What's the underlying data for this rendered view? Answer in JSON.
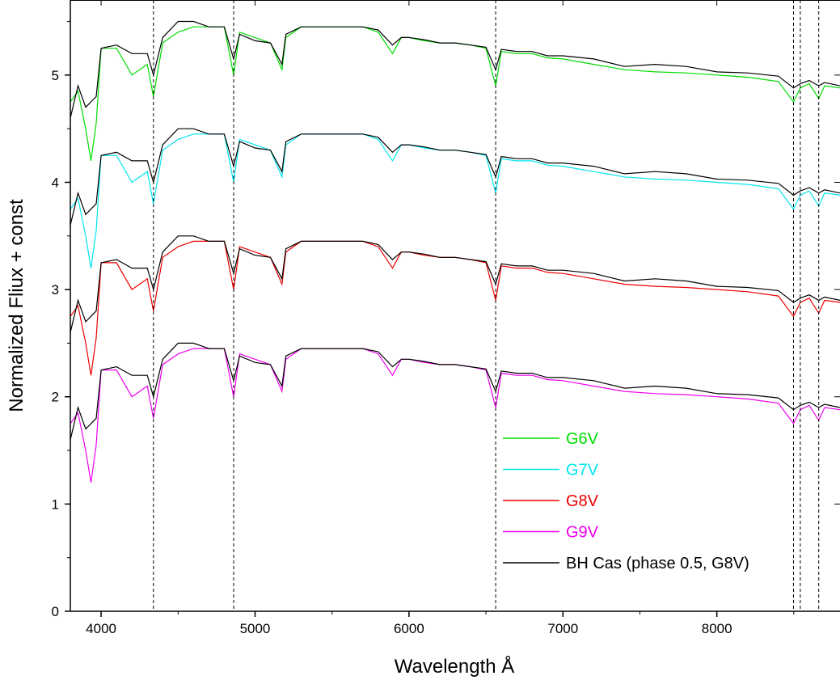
{
  "chart_data": {
    "type": "line",
    "title": "",
    "xlabel": "Wavelength Å",
    "ylabel": "Normalized Fliux + const",
    "xlim": [
      3800,
      8800
    ],
    "ylim": [
      0,
      5.7
    ],
    "x_ticks": [
      4000,
      5000,
      6000,
      7000,
      8000
    ],
    "y_ticks": [
      0,
      1,
      2,
      3,
      4,
      5
    ],
    "grid": false,
    "legend_position": "bottom-right",
    "reference_lines_x": [
      4340,
      4861,
      6563,
      8498,
      8542,
      8662
    ],
    "series": [
      {
        "name": "G6V",
        "color": "#00dd00",
        "offset": 3.0,
        "x": [
          3800,
          3850,
          3900,
          3934,
          3968,
          4000,
          4100,
          4200,
          4300,
          4340,
          4400,
          4500,
          4600,
          4700,
          4800,
          4861,
          4900,
          5000,
          5100,
          5175,
          5200,
          5300,
          5400,
          5500,
          5600,
          5700,
          5800,
          5893,
          5950,
          6000,
          6100,
          6200,
          6300,
          6400,
          6500,
          6563,
          6600,
          6700,
          6800,
          6900,
          7000,
          7200,
          7400,
          7600,
          7800,
          8000,
          8200,
          8400,
          8498,
          8542,
          8600,
          8662,
          8700,
          8800
        ],
        "y": [
          1.75,
          1.85,
          1.5,
          1.2,
          1.55,
          2.25,
          2.25,
          2.0,
          2.1,
          1.8,
          2.3,
          2.4,
          2.45,
          2.45,
          2.45,
          2.0,
          2.4,
          2.35,
          2.3,
          2.05,
          2.35,
          2.45,
          2.45,
          2.45,
          2.45,
          2.45,
          2.4,
          2.2,
          2.35,
          2.35,
          2.32,
          2.3,
          2.3,
          2.28,
          2.25,
          1.9,
          2.22,
          2.2,
          2.2,
          2.16,
          2.15,
          2.1,
          2.05,
          2.03,
          2.02,
          2.0,
          1.98,
          1.94,
          1.75,
          1.88,
          1.92,
          1.78,
          1.9,
          1.88
        ]
      },
      {
        "name": "G7V",
        "color": "#00e5ee",
        "offset": 2.0,
        "x": [
          3800,
          3850,
          3900,
          3934,
          3968,
          4000,
          4100,
          4200,
          4300,
          4340,
          4400,
          4500,
          4600,
          4700,
          4800,
          4861,
          4900,
          5000,
          5100,
          5175,
          5200,
          5300,
          5400,
          5500,
          5600,
          5700,
          5800,
          5893,
          5950,
          6000,
          6100,
          6200,
          6300,
          6400,
          6500,
          6563,
          6600,
          6700,
          6800,
          6900,
          7000,
          7200,
          7400,
          7600,
          7800,
          8000,
          8200,
          8400,
          8498,
          8542,
          8600,
          8662,
          8700,
          8800
        ],
        "y": [
          1.75,
          1.85,
          1.5,
          1.2,
          1.55,
          2.25,
          2.25,
          2.0,
          2.1,
          1.8,
          2.3,
          2.4,
          2.45,
          2.45,
          2.45,
          2.0,
          2.4,
          2.35,
          2.3,
          2.05,
          2.35,
          2.45,
          2.45,
          2.45,
          2.45,
          2.45,
          2.4,
          2.2,
          2.35,
          2.35,
          2.32,
          2.3,
          2.3,
          2.28,
          2.25,
          1.9,
          2.22,
          2.2,
          2.2,
          2.16,
          2.15,
          2.1,
          2.05,
          2.03,
          2.02,
          2.0,
          1.98,
          1.94,
          1.75,
          1.88,
          1.92,
          1.78,
          1.9,
          1.88
        ]
      },
      {
        "name": "G8V",
        "color": "#ee0000",
        "offset": 1.0,
        "x": [
          3800,
          3850,
          3900,
          3934,
          3968,
          4000,
          4100,
          4200,
          4300,
          4340,
          4400,
          4500,
          4600,
          4700,
          4800,
          4861,
          4900,
          5000,
          5100,
          5175,
          5200,
          5300,
          5400,
          5500,
          5600,
          5700,
          5800,
          5893,
          5950,
          6000,
          6100,
          6200,
          6300,
          6400,
          6500,
          6563,
          6600,
          6700,
          6800,
          6900,
          7000,
          7200,
          7400,
          7600,
          7800,
          8000,
          8200,
          8400,
          8498,
          8542,
          8600,
          8662,
          8700,
          8800
        ],
        "y": [
          1.75,
          1.85,
          1.5,
          1.2,
          1.55,
          2.25,
          2.25,
          2.0,
          2.1,
          1.8,
          2.3,
          2.4,
          2.45,
          2.45,
          2.45,
          2.0,
          2.4,
          2.35,
          2.3,
          2.05,
          2.35,
          2.45,
          2.45,
          2.45,
          2.45,
          2.45,
          2.4,
          2.2,
          2.35,
          2.35,
          2.32,
          2.3,
          2.3,
          2.28,
          2.25,
          1.9,
          2.22,
          2.2,
          2.2,
          2.16,
          2.15,
          2.1,
          2.05,
          2.03,
          2.02,
          2.0,
          1.98,
          1.94,
          1.75,
          1.88,
          1.92,
          1.78,
          1.9,
          1.88
        ]
      },
      {
        "name": "G9V",
        "color": "#ee00ee",
        "offset": 0.0,
        "x": [
          3800,
          3850,
          3900,
          3934,
          3968,
          4000,
          4100,
          4200,
          4300,
          4340,
          4400,
          4500,
          4600,
          4700,
          4800,
          4861,
          4900,
          5000,
          5100,
          5175,
          5200,
          5300,
          5400,
          5500,
          5600,
          5700,
          5800,
          5893,
          5950,
          6000,
          6100,
          6200,
          6300,
          6400,
          6500,
          6563,
          6600,
          6700,
          6800,
          6900,
          7000,
          7200,
          7400,
          7600,
          7800,
          8000,
          8200,
          8400,
          8498,
          8542,
          8600,
          8662,
          8700,
          8800
        ],
        "y": [
          1.75,
          1.85,
          1.5,
          1.2,
          1.55,
          2.25,
          2.25,
          2.0,
          2.1,
          1.8,
          2.3,
          2.4,
          2.45,
          2.45,
          2.45,
          2.0,
          2.4,
          2.35,
          2.3,
          2.05,
          2.35,
          2.45,
          2.45,
          2.45,
          2.45,
          2.45,
          2.4,
          2.2,
          2.35,
          2.35,
          2.32,
          2.3,
          2.3,
          2.28,
          2.25,
          1.9,
          2.22,
          2.2,
          2.2,
          2.16,
          2.15,
          2.1,
          2.05,
          2.03,
          2.02,
          2.0,
          1.98,
          1.94,
          1.75,
          1.88,
          1.92,
          1.78,
          1.9,
          1.88
        ]
      },
      {
        "name": "BH Cas (phase 0.5, G8V)",
        "color": "#000000",
        "offsets": [
          3.0,
          2.0,
          1.0,
          0.0
        ],
        "x": [
          3800,
          3850,
          3900,
          3934,
          3968,
          4000,
          4100,
          4200,
          4300,
          4340,
          4400,
          4500,
          4600,
          4700,
          4800,
          4861,
          4900,
          5000,
          5100,
          5175,
          5200,
          5300,
          5400,
          5500,
          5600,
          5700,
          5800,
          5893,
          5950,
          6000,
          6100,
          6200,
          6300,
          6400,
          6500,
          6563,
          6600,
          6700,
          6800,
          6900,
          7000,
          7200,
          7400,
          7600,
          7800,
          8000,
          8200,
          8400,
          8498,
          8542,
          8600,
          8662,
          8700,
          8800
        ],
        "y": [
          1.6,
          1.9,
          1.7,
          1.75,
          1.8,
          2.25,
          2.28,
          2.2,
          2.2,
          2.0,
          2.35,
          2.5,
          2.5,
          2.45,
          2.45,
          2.15,
          2.38,
          2.32,
          2.3,
          2.1,
          2.38,
          2.45,
          2.45,
          2.45,
          2.45,
          2.45,
          2.42,
          2.28,
          2.35,
          2.35,
          2.33,
          2.3,
          2.3,
          2.28,
          2.26,
          2.05,
          2.24,
          2.22,
          2.22,
          2.18,
          2.18,
          2.15,
          2.08,
          2.1,
          2.08,
          2.03,
          2.02,
          1.99,
          1.88,
          1.92,
          1.95,
          1.9,
          1.93,
          1.9
        ]
      }
    ]
  }
}
